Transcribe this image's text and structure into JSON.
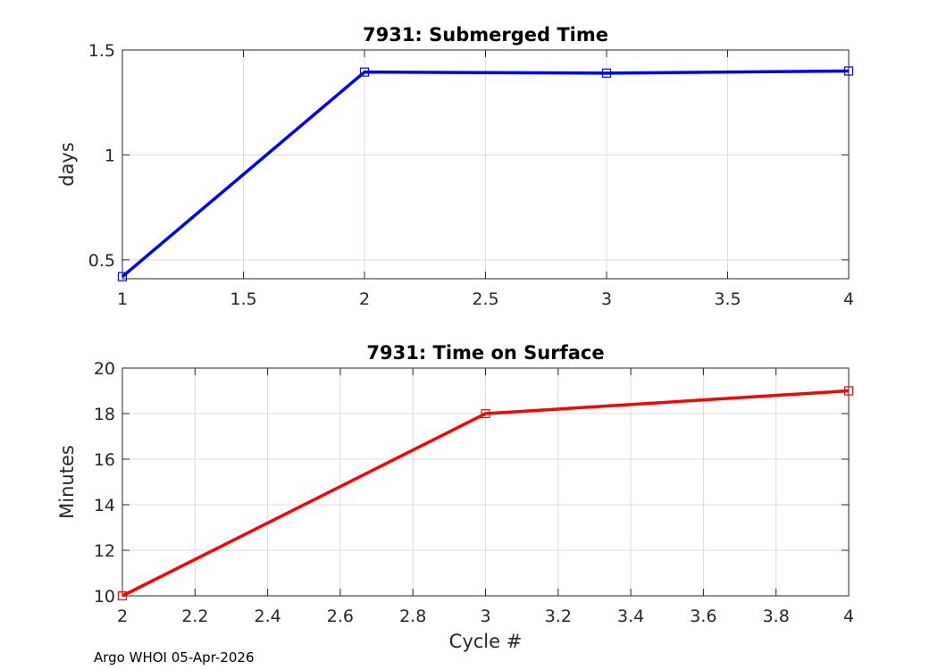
{
  "footer": "Argo WHOI 05-Apr-2026",
  "chart_data": [
    {
      "type": "line",
      "title": "7931: Submerged Time",
      "xlabel": "",
      "ylabel": "days",
      "xlim": [
        1,
        4
      ],
      "ylim": [
        0.41,
        1.5
      ],
      "xticks": [
        1,
        1.5,
        2,
        2.5,
        3,
        3.5,
        4
      ],
      "xtick_labels": [
        "1",
        "1.5",
        "2",
        "2.5",
        "3",
        "3.5",
        "4"
      ],
      "yticks": [
        0.5,
        1,
        1.5
      ],
      "ytick_labels": [
        "0.5",
        "1",
        "1.5"
      ],
      "grid": true,
      "marker": "square",
      "color": "#0000ff",
      "x": [
        1,
        2,
        3,
        4
      ],
      "y": [
        0.42,
        1.395,
        1.39,
        1.4
      ]
    },
    {
      "type": "line",
      "title": "7931: Time on Surface",
      "xlabel": "Cycle #",
      "ylabel": "Minutes",
      "xlim": [
        2,
        4
      ],
      "ylim": [
        10,
        20
      ],
      "xticks": [
        2,
        2.2,
        2.4,
        2.6,
        2.8,
        3,
        3.2,
        3.4,
        3.6,
        3.8,
        4
      ],
      "xtick_labels": [
        "2",
        "2.2",
        "2.4",
        "2.6",
        "2.8",
        "3",
        "3.2",
        "3.4",
        "3.6",
        "3.8",
        "4"
      ],
      "yticks": [
        10,
        12,
        14,
        16,
        18,
        20
      ],
      "ytick_labels": [
        "10",
        "12",
        "14",
        "16",
        "18",
        "20"
      ],
      "grid": true,
      "marker": "square",
      "color": "#ff0000",
      "x": [
        2,
        3,
        4
      ],
      "y": [
        10,
        18,
        19
      ]
    }
  ]
}
